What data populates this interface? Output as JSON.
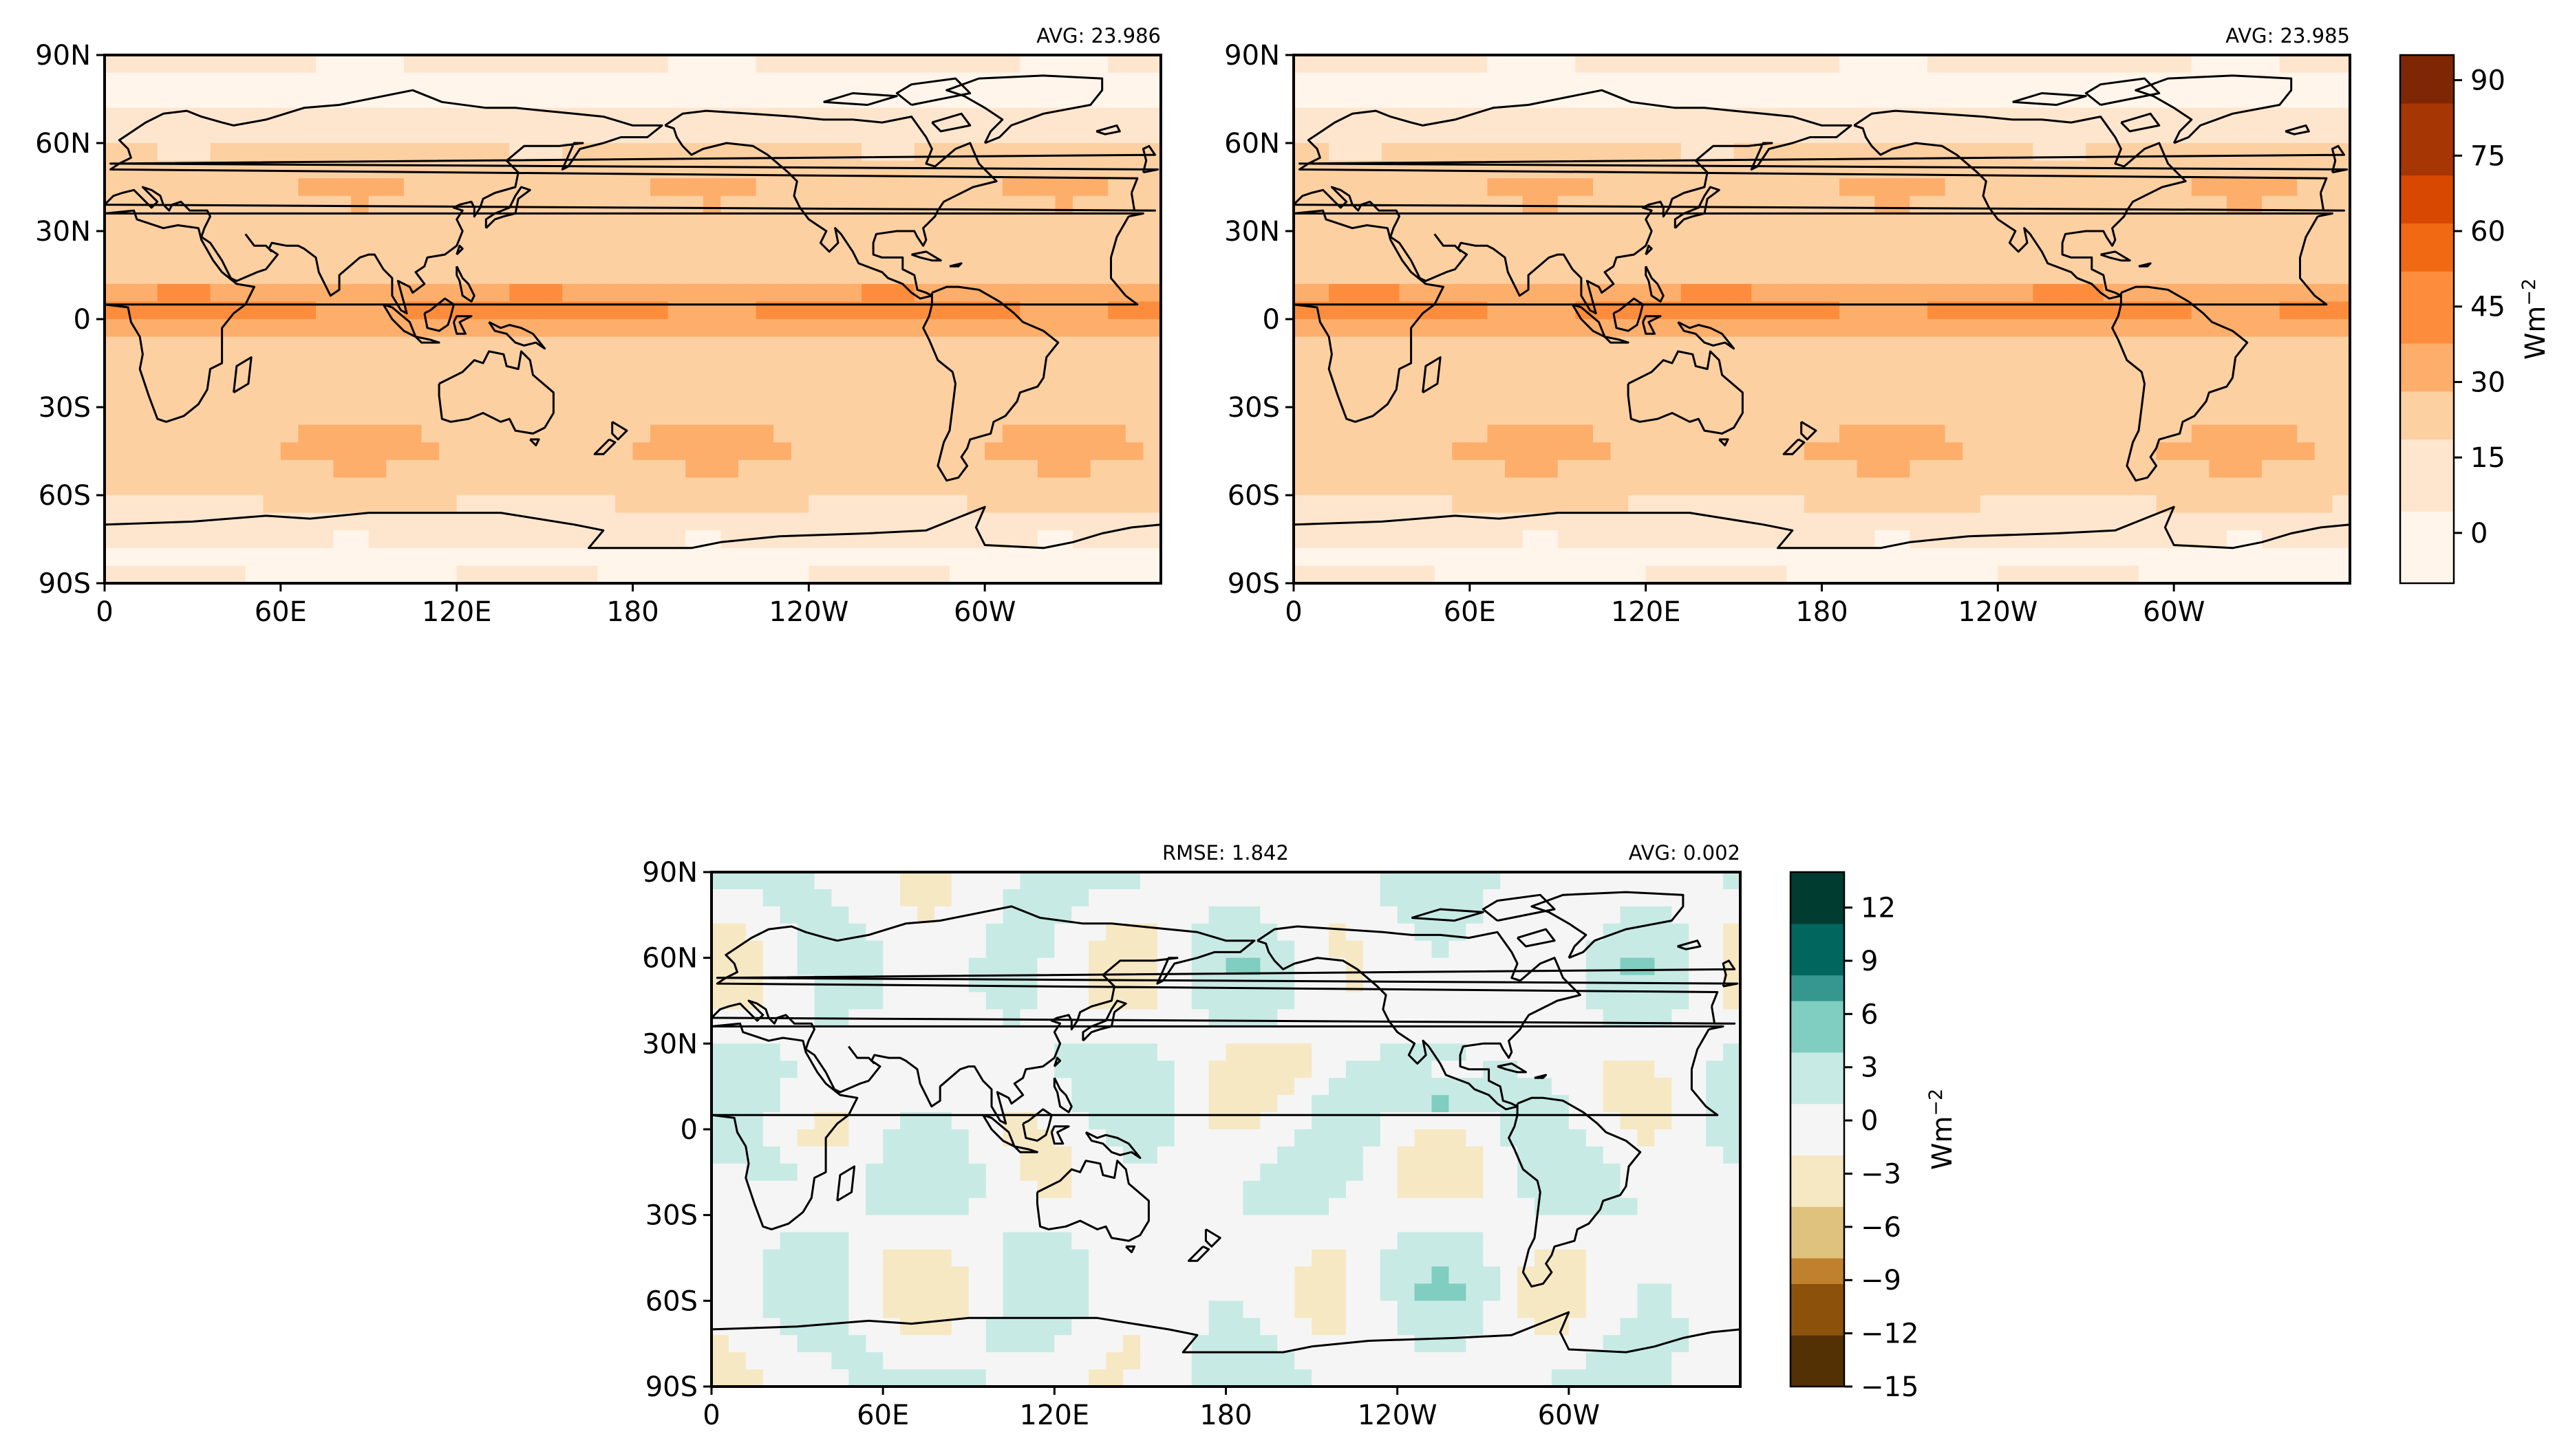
{
  "figure": {
    "type": "global map panels",
    "colors": {
      "seq": [
        "#fff5eb",
        "#fee6ce",
        "#fdd0a2",
        "#fdae6b",
        "#fd8d3c",
        "#f16913",
        "#d94801",
        "#a63603",
        "#7f2704"
      ],
      "div": [
        "#543005",
        "#8c510a",
        "#bf812d",
        "#dfc27d",
        "#f6e8c3",
        "#f5f5f5",
        "#c7eae5",
        "#80cdc1",
        "#35978f",
        "#01665e",
        "#003c30"
      ],
      "coast": "#000000"
    }
  },
  "panels": [
    {
      "id": "top-left",
      "stats_right": "AVG: 23.986",
      "stats_center": "",
      "palette": "seq",
      "seed": 1
    },
    {
      "id": "top-right",
      "stats_right": "AVG: 23.985",
      "stats_center": "",
      "palette": "seq",
      "seed": 2
    },
    {
      "id": "bottom",
      "stats_right": "AVG: 0.002",
      "stats_center": "RMSE: 1.842",
      "palette": "div",
      "seed": 3
    }
  ],
  "axes": {
    "x_ticks": [
      "0",
      "60E",
      "120E",
      "180",
      "120W",
      "60W"
    ],
    "y_ticks": [
      "90N",
      "60N",
      "30N",
      "0",
      "30S",
      "60S",
      "90S"
    ],
    "lon_values": [
      0,
      60,
      120,
      180,
      240,
      300
    ],
    "lon_range": [
      0,
      360
    ],
    "lat_values": [
      90,
      60,
      30,
      0,
      -30,
      -60,
      -90
    ],
    "lat_range": [
      -90,
      90
    ]
  },
  "colorbars": [
    {
      "id": "seq",
      "label": "Wm",
      "label_sup": "−2",
      "ticks": [
        "90",
        "75",
        "60",
        "45",
        "30",
        "15",
        "0"
      ],
      "values": [
        90,
        75,
        60,
        45,
        30,
        15,
        0
      ],
      "range": [
        -10,
        95
      ]
    },
    {
      "id": "div",
      "label": "Wm",
      "label_sup": "−2",
      "ticks": [
        "12",
        "9",
        "6",
        "3",
        "0",
        "−3",
        "−6",
        "−9",
        "−12",
        "−15"
      ],
      "values": [
        12,
        9,
        6,
        3,
        0,
        -3,
        -6,
        -9,
        -12,
        -15
      ],
      "range": [
        -15,
        14
      ]
    }
  ]
}
